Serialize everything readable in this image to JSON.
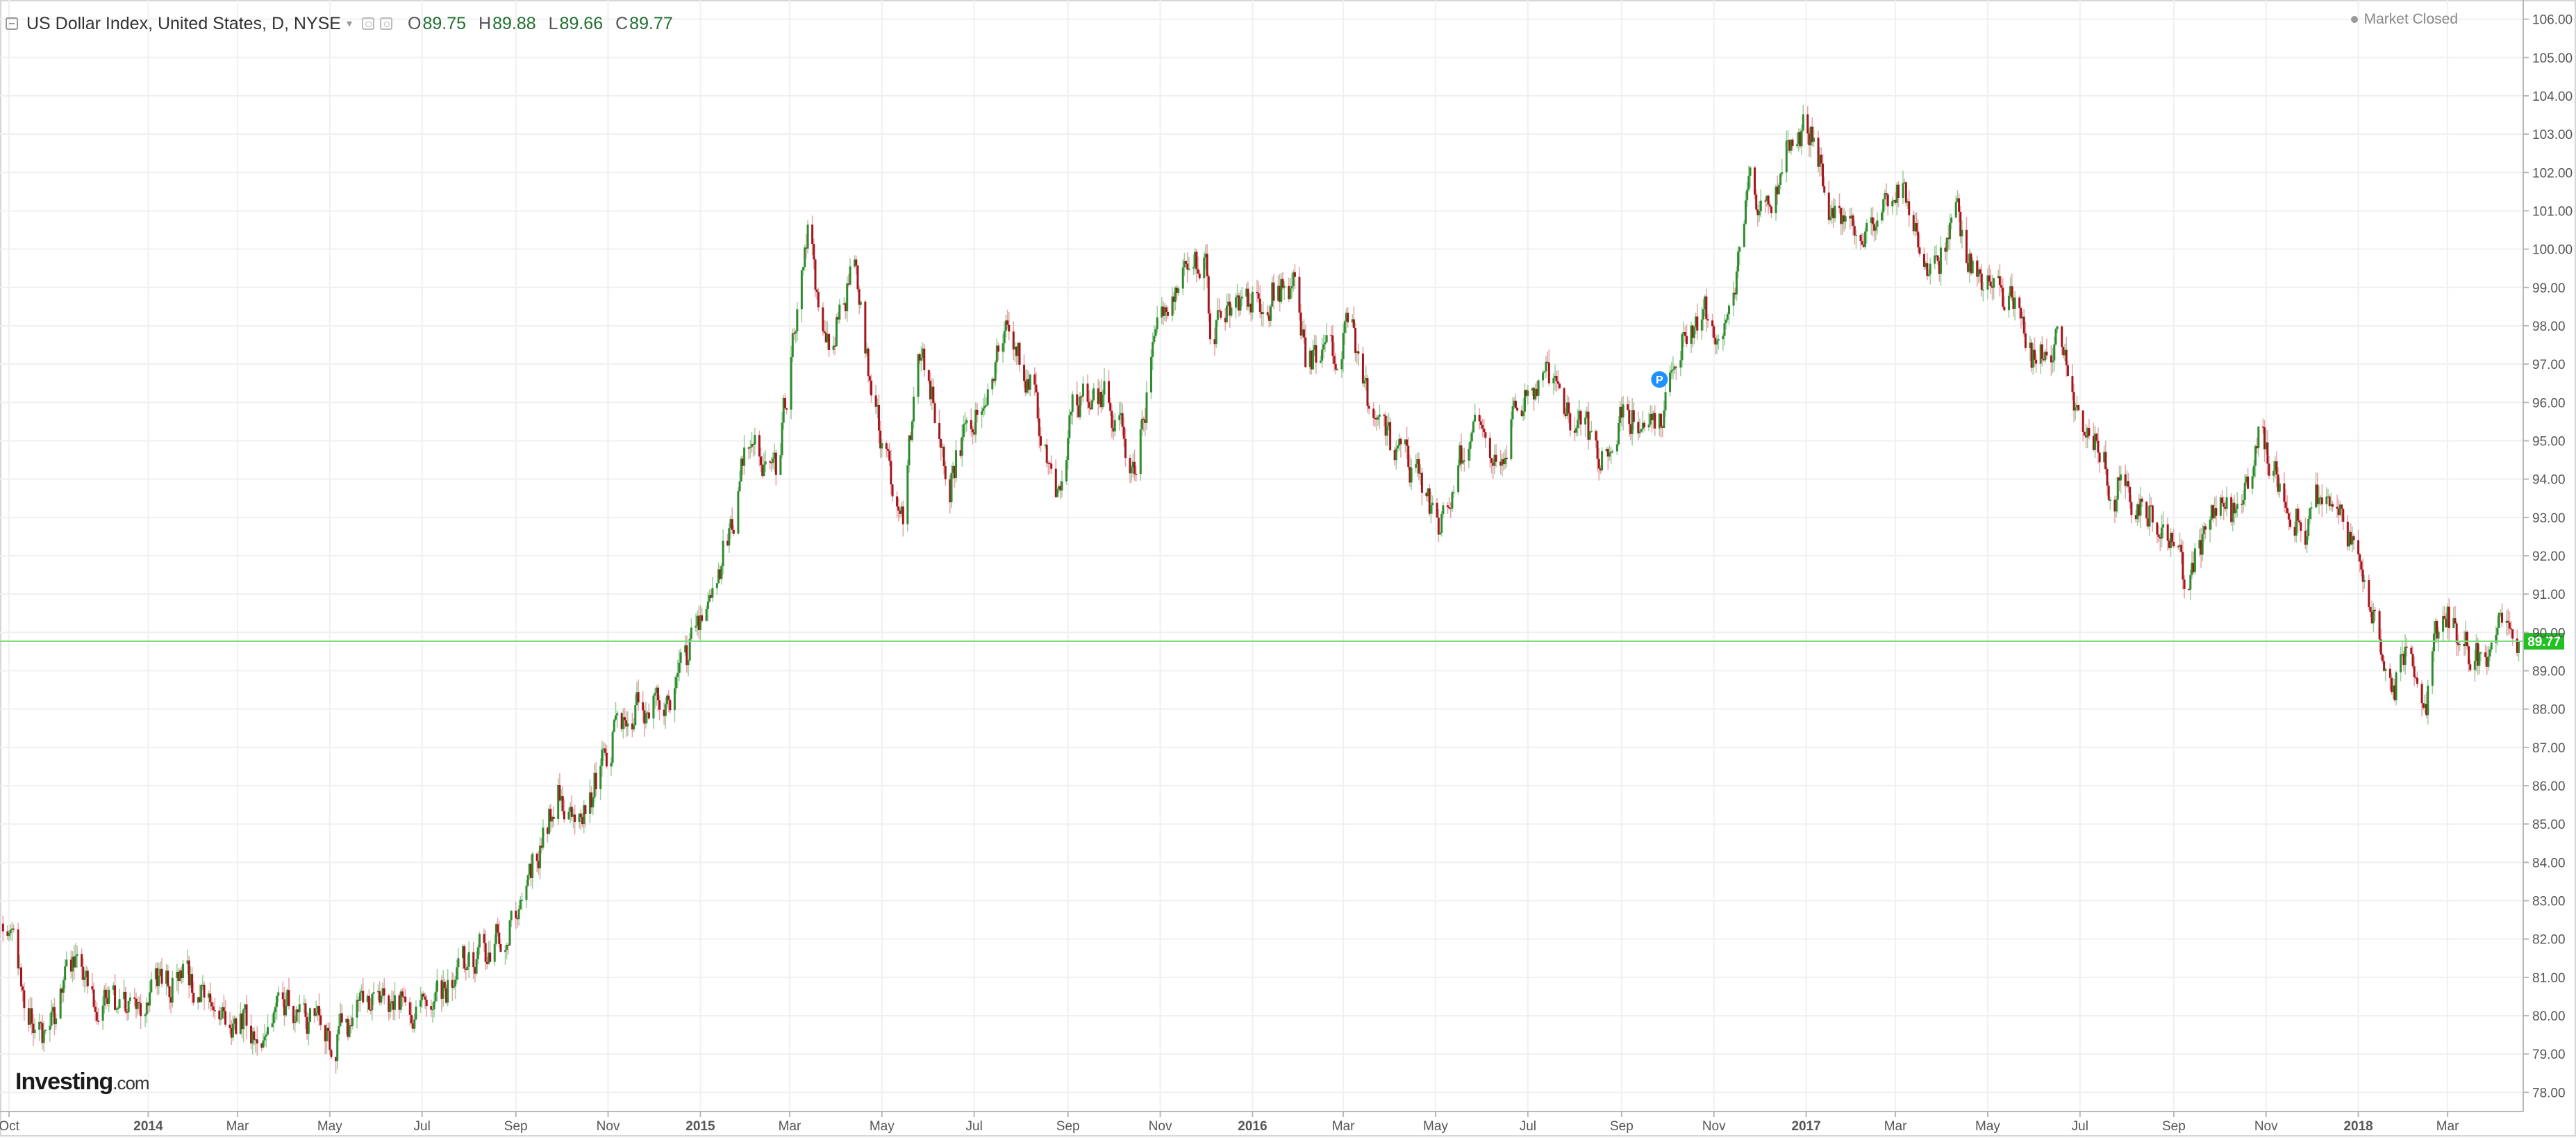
{
  "header": {
    "symbol_title": "US Dollar Index, United States, D, NYSE",
    "ohlc": [
      {
        "key": "O",
        "value": "89.75"
      },
      {
        "key": "H",
        "value": "89.88"
      },
      {
        "key": "L",
        "value": "89.66"
      },
      {
        "key": "C",
        "value": "89.77"
      }
    ],
    "market_status": "Market Closed"
  },
  "brand": {
    "name": "Investing",
    "tld": ".com"
  },
  "chart_data": {
    "type": "candlestick",
    "title": "US Dollar Index, United States, D, NYSE",
    "xlabel": "",
    "ylabel": "",
    "ylim": [
      77.5,
      106.5
    ],
    "y_ticks": [
      "78.00",
      "79.00",
      "80.00",
      "81.00",
      "82.00",
      "83.00",
      "84.00",
      "85.00",
      "86.00",
      "87.00",
      "88.00",
      "89.00",
      "90.00",
      "91.00",
      "92.00",
      "93.00",
      "94.00",
      "95.00",
      "96.00",
      "97.00",
      "98.00",
      "99.00",
      "100.00",
      "101.00",
      "102.00",
      "103.00",
      "104.00",
      "105.00",
      "106.00"
    ],
    "x_range": [
      "2013-09-25",
      "2018-04-20"
    ],
    "x_ticks": [
      {
        "label": "Oct",
        "date": "2013-10-01",
        "bold": false
      },
      {
        "label": "2014",
        "date": "2014-01-01",
        "bold": true
      },
      {
        "label": "Mar",
        "date": "2014-03-01",
        "bold": false
      },
      {
        "label": "May",
        "date": "2014-05-01",
        "bold": false
      },
      {
        "label": "Jul",
        "date": "2014-07-01",
        "bold": false
      },
      {
        "label": "Sep",
        "date": "2014-09-01",
        "bold": false
      },
      {
        "label": "Nov",
        "date": "2014-11-01",
        "bold": false
      },
      {
        "label": "2015",
        "date": "2015-01-01",
        "bold": true
      },
      {
        "label": "Mar",
        "date": "2015-03-01",
        "bold": false
      },
      {
        "label": "May",
        "date": "2015-05-01",
        "bold": false
      },
      {
        "label": "Jul",
        "date": "2015-07-01",
        "bold": false
      },
      {
        "label": "Sep",
        "date": "2015-09-01",
        "bold": false
      },
      {
        "label": "Nov",
        "date": "2015-11-01",
        "bold": false
      },
      {
        "label": "2016",
        "date": "2016-01-01",
        "bold": true
      },
      {
        "label": "Mar",
        "date": "2016-03-01",
        "bold": false
      },
      {
        "label": "May",
        "date": "2016-05-01",
        "bold": false
      },
      {
        "label": "Jul",
        "date": "2016-07-01",
        "bold": false
      },
      {
        "label": "Sep",
        "date": "2016-09-01",
        "bold": false
      },
      {
        "label": "Nov",
        "date": "2016-11-01",
        "bold": false
      },
      {
        "label": "2017",
        "date": "2017-01-01",
        "bold": true
      },
      {
        "label": "Mar",
        "date": "2017-03-01",
        "bold": false
      },
      {
        "label": "May",
        "date": "2017-05-01",
        "bold": false
      },
      {
        "label": "Jul",
        "date": "2017-07-01",
        "bold": false
      },
      {
        "label": "Sep",
        "date": "2017-09-01",
        "bold": false
      },
      {
        "label": "Nov",
        "date": "2017-11-01",
        "bold": false
      },
      {
        "label": "2018",
        "date": "2018-01-01",
        "bold": true
      },
      {
        "label": "Mar",
        "date": "2018-03-01",
        "bold": false
      }
    ],
    "price_trend": [
      {
        "date": "2013-09-27",
        "close": 82.4
      },
      {
        "date": "2013-10-10",
        "close": 80.6
      },
      {
        "date": "2013-10-25",
        "close": 79.3
      },
      {
        "date": "2013-11-10",
        "close": 81.2
      },
      {
        "date": "2013-12-05",
        "close": 80.3
      },
      {
        "date": "2013-12-27",
        "close": 80.1
      },
      {
        "date": "2014-01-22",
        "close": 81.2
      },
      {
        "date": "2014-02-05",
        "close": 80.6
      },
      {
        "date": "2014-02-25",
        "close": 80.1
      },
      {
        "date": "2014-03-15",
        "close": 79.6
      },
      {
        "date": "2014-04-01",
        "close": 80.4
      },
      {
        "date": "2014-04-20",
        "close": 79.9
      },
      {
        "date": "2014-05-05",
        "close": 79.3
      },
      {
        "date": "2014-05-25",
        "close": 80.3
      },
      {
        "date": "2014-06-15",
        "close": 80.6
      },
      {
        "date": "2014-07-01",
        "close": 80.0
      },
      {
        "date": "2014-07-20",
        "close": 80.8
      },
      {
        "date": "2014-08-10",
        "close": 81.6
      },
      {
        "date": "2014-08-30",
        "close": 82.6
      },
      {
        "date": "2014-09-15",
        "close": 84.2
      },
      {
        "date": "2014-10-01",
        "close": 86.0
      },
      {
        "date": "2014-10-15",
        "close": 85.1
      },
      {
        "date": "2014-11-05",
        "close": 87.5
      },
      {
        "date": "2014-11-25",
        "close": 88.1
      },
      {
        "date": "2014-12-15",
        "close": 88.4
      },
      {
        "date": "2014-12-31",
        "close": 90.3
      },
      {
        "date": "2015-01-20",
        "close": 92.6
      },
      {
        "date": "2015-02-01",
        "close": 94.8
      },
      {
        "date": "2015-02-20",
        "close": 94.3
      },
      {
        "date": "2015-03-13",
        "close": 100.2
      },
      {
        "date": "2015-03-25",
        "close": 97.2
      },
      {
        "date": "2015-04-12",
        "close": 99.4
      },
      {
        "date": "2015-05-01",
        "close": 94.7
      },
      {
        "date": "2015-05-15",
        "close": 93.3
      },
      {
        "date": "2015-05-27",
        "close": 97.5
      },
      {
        "date": "2015-06-15",
        "close": 94.2
      },
      {
        "date": "2015-07-08",
        "close": 96.5
      },
      {
        "date": "2015-07-22",
        "close": 97.8
      },
      {
        "date": "2015-08-10",
        "close": 96.4
      },
      {
        "date": "2015-08-24",
        "close": 93.4
      },
      {
        "date": "2015-09-05",
        "close": 96.0
      },
      {
        "date": "2015-09-25",
        "close": 96.2
      },
      {
        "date": "2015-10-15",
        "close": 94.2
      },
      {
        "date": "2015-10-28",
        "close": 97.6
      },
      {
        "date": "2015-11-15",
        "close": 99.4
      },
      {
        "date": "2015-12-01",
        "close": 100.1
      },
      {
        "date": "2015-12-04",
        "close": 98.0
      },
      {
        "date": "2015-12-20",
        "close": 98.6
      },
      {
        "date": "2016-01-05",
        "close": 98.9
      },
      {
        "date": "2016-01-28",
        "close": 99.0
      },
      {
        "date": "2016-02-05",
        "close": 96.9
      },
      {
        "date": "2016-02-20",
        "close": 97.2
      },
      {
        "date": "2016-03-05",
        "close": 98.1
      },
      {
        "date": "2016-03-20",
        "close": 95.2
      },
      {
        "date": "2016-04-05",
        "close": 94.6
      },
      {
        "date": "2016-04-20",
        "close": 94.1
      },
      {
        "date": "2016-05-03",
        "close": 92.7
      },
      {
        "date": "2016-05-25",
        "close": 95.4
      },
      {
        "date": "2016-06-15",
        "close": 94.2
      },
      {
        "date": "2016-06-24",
        "close": 96.0
      },
      {
        "date": "2016-07-15",
        "close": 96.6
      },
      {
        "date": "2016-08-01",
        "close": 95.6
      },
      {
        "date": "2016-08-18",
        "close": 94.4
      },
      {
        "date": "2016-09-05",
        "close": 95.7
      },
      {
        "date": "2016-09-25",
        "close": 95.4
      },
      {
        "date": "2016-10-10",
        "close": 97.5
      },
      {
        "date": "2016-10-28",
        "close": 98.4
      },
      {
        "date": "2016-11-08",
        "close": 97.9
      },
      {
        "date": "2016-11-24",
        "close": 101.5
      },
      {
        "date": "2016-12-10",
        "close": 101.0
      },
      {
        "date": "2016-12-20",
        "close": 103.2
      },
      {
        "date": "2017-01-05",
        "close": 103.1
      },
      {
        "date": "2017-01-20",
        "close": 100.8
      },
      {
        "date": "2017-02-05",
        "close": 99.8
      },
      {
        "date": "2017-02-25",
        "close": 101.2
      },
      {
        "date": "2017-03-05",
        "close": 101.9
      },
      {
        "date": "2017-03-25",
        "close": 99.3
      },
      {
        "date": "2017-04-10",
        "close": 100.8
      },
      {
        "date": "2017-04-25",
        "close": 99.0
      },
      {
        "date": "2017-05-15",
        "close": 98.7
      },
      {
        "date": "2017-05-30",
        "close": 97.1
      },
      {
        "date": "2017-06-15",
        "close": 97.5
      },
      {
        "date": "2017-07-01",
        "close": 95.7
      },
      {
        "date": "2017-07-20",
        "close": 94.1
      },
      {
        "date": "2017-08-10",
        "close": 93.1
      },
      {
        "date": "2017-08-25",
        "close": 92.9
      },
      {
        "date": "2017-09-08",
        "close": 91.4
      },
      {
        "date": "2017-09-28",
        "close": 93.2
      },
      {
        "date": "2017-10-15",
        "close": 93.0
      },
      {
        "date": "2017-10-27",
        "close": 94.9
      },
      {
        "date": "2017-11-15",
        "close": 93.7
      },
      {
        "date": "2017-11-27",
        "close": 92.9
      },
      {
        "date": "2017-12-12",
        "close": 94.0
      },
      {
        "date": "2017-12-29",
        "close": 92.1
      },
      {
        "date": "2018-01-12",
        "close": 90.3
      },
      {
        "date": "2018-01-25",
        "close": 88.7
      },
      {
        "date": "2018-02-05",
        "close": 89.7
      },
      {
        "date": "2018-02-15",
        "close": 88.6
      },
      {
        "date": "2018-02-28",
        "close": 90.6
      },
      {
        "date": "2018-03-15",
        "close": 89.6
      },
      {
        "date": "2018-03-27",
        "close": 89.2
      },
      {
        "date": "2018-04-06",
        "close": 90.2
      },
      {
        "date": "2018-04-17",
        "close": 89.77
      }
    ],
    "last_price": {
      "value": 89.77,
      "label": "89.77"
    },
    "marker": {
      "date": "2016-09-26",
      "value": 96.6,
      "label": "P"
    },
    "colors": {
      "up": "#2e8b2e",
      "down": "#a3161b",
      "wick_up": "#9acd9a",
      "wick_down": "#e8a0a6",
      "last_price_line": "#7ddc7d",
      "last_price_badge": "#22c122",
      "marker": "#1e90ff",
      "grid": "#f0f0f0",
      "axis": "#b8b8b8",
      "tick_text": "#555555"
    }
  }
}
